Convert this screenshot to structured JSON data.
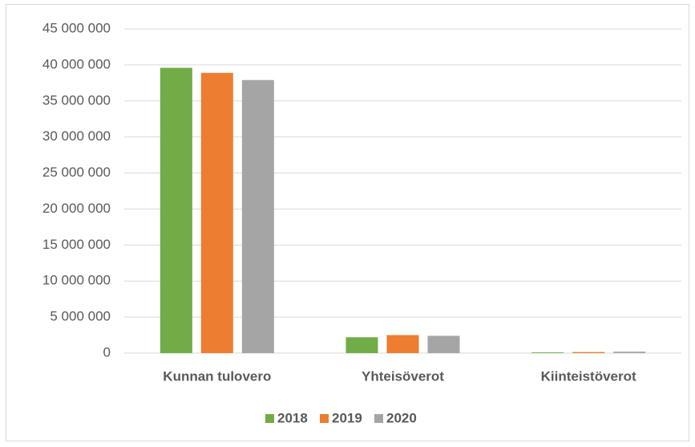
{
  "chart_data": {
    "type": "bar",
    "categories": [
      "Kunnan tulovero",
      "Yhteisöverot",
      "Kiinteistöverot"
    ],
    "series": [
      {
        "name": "2018",
        "color": "#70ad47",
        "values": [
          39600000,
          2200000,
          100000
        ]
      },
      {
        "name": "2019",
        "color": "#ed7d31",
        "values": [
          38900000,
          2500000,
          150000
        ]
      },
      {
        "name": "2020",
        "color": "#a5a5a5",
        "values": [
          37900000,
          2400000,
          200000
        ]
      }
    ],
    "ylim": [
      0,
      45000000
    ],
    "yticks": [
      {
        "value": 0,
        "label": "0"
      },
      {
        "value": 5000000,
        "label": "5 000 000"
      },
      {
        "value": 10000000,
        "label": "10 000 000"
      },
      {
        "value": 15000000,
        "label": "15 000 000"
      },
      {
        "value": 20000000,
        "label": "20 000 000"
      },
      {
        "value": 25000000,
        "label": "25 000 000"
      },
      {
        "value": 30000000,
        "label": "30 000 000"
      },
      {
        "value": 35000000,
        "label": "35 000 000"
      },
      {
        "value": 40000000,
        "label": "40 000 000"
      },
      {
        "value": 45000000,
        "label": "45 000 000"
      }
    ],
    "grid": true,
    "legend": "bottom"
  }
}
